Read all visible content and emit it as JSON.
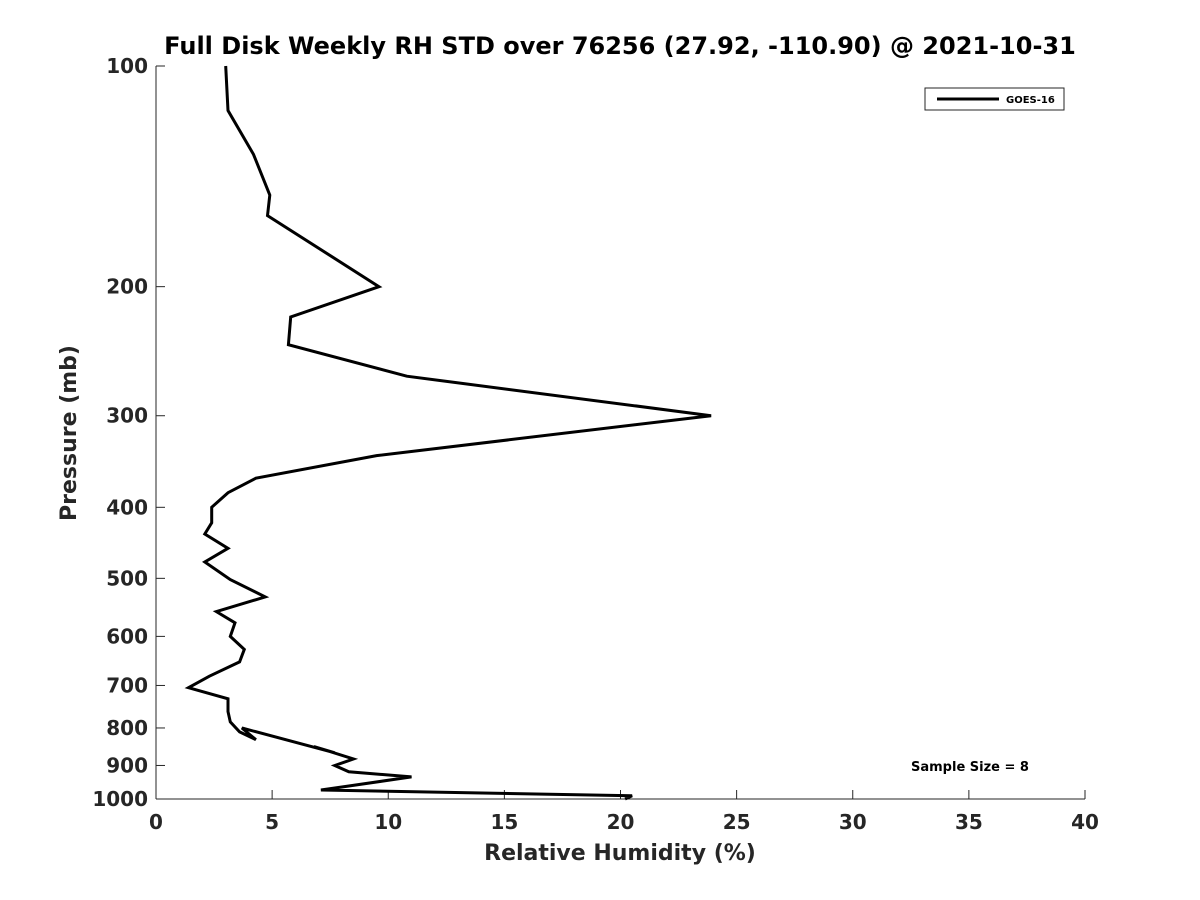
{
  "chart_data": {
    "type": "line",
    "title": "Full Disk Weekly RH STD over 76256 (27.92, -110.90) @ 2021-10-31",
    "xlabel": "Relative Humidity (%)",
    "ylabel": "Pressure (mb)",
    "xlim": [
      0,
      40
    ],
    "ylim": [
      1000,
      100
    ],
    "yscale": "log",
    "y_reversed": true,
    "x_ticks": [
      0,
      5,
      10,
      15,
      20,
      25,
      30,
      35,
      40
    ],
    "y_ticks": [
      100,
      200,
      300,
      400,
      500,
      600,
      700,
      800,
      900,
      1000
    ],
    "grid": false,
    "legend": {
      "position": "top-right",
      "entries": [
        "GOES-16"
      ]
    },
    "annotation": "Sample Size = 8",
    "series": [
      {
        "name": "GOES-16",
        "color": "#000000",
        "x": [
          3.0,
          3.1,
          4.2,
          4.9,
          4.8,
          9.6,
          5.8,
          5.7,
          10.8,
          23.9,
          9.5,
          4.3,
          3.1,
          2.4,
          2.4,
          2.1,
          3.1,
          2.1,
          3.2,
          4.7,
          2.6,
          3.4,
          3.2,
          3.8,
          3.6,
          2.3,
          1.4,
          3.1,
          3.1,
          3.2,
          3.6,
          4.3,
          3.7,
          7.7,
          6.8,
          8.5,
          7.7,
          8.3,
          11.0,
          8.3,
          7.1,
          20.5,
          20.2
        ],
        "y": [
          100,
          115,
          132,
          150,
          160,
          200,
          220,
          240,
          265,
          300,
          340,
          365,
          382,
          400,
          420,
          435,
          455,
          475,
          502,
          530,
          555,
          575,
          600,
          625,
          650,
          680,
          705,
          730,
          760,
          785,
          810,
          830,
          800,
          865,
          848,
          882,
          900,
          918,
          933,
          960,
          972,
          990,
          1000
        ]
      }
    ]
  }
}
